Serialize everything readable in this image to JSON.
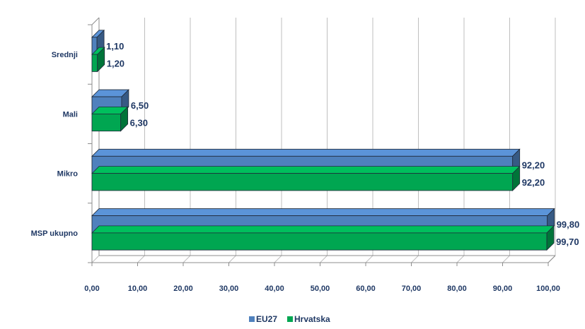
{
  "chart_data": {
    "type": "bar",
    "orientation": "horizontal",
    "three_d": true,
    "categories": [
      "Srednji",
      "Mali",
      "Mikro",
      "MSP ukupno"
    ],
    "series": [
      {
        "name": "EU27",
        "color": "#4f81bd",
        "values": [
          1.1,
          6.5,
          92.2,
          99.8
        ],
        "labels": [
          "1,10",
          "6,50",
          "92,20",
          "99,80"
        ]
      },
      {
        "name": "Hrvatska",
        "color": "#00a651",
        "values": [
          1.2,
          6.3,
          92.2,
          99.7
        ],
        "labels": [
          "1,20",
          "6,30",
          "92,20",
          "99,70"
        ]
      }
    ],
    "xlim": [
      0,
      100
    ],
    "xticks": [
      "0,00",
      "10,00",
      "20,00",
      "30,00",
      "40,00",
      "50,00",
      "60,00",
      "70,00",
      "80,00",
      "90,00",
      "100,00"
    ],
    "grid": true,
    "legend": "bottom",
    "title": "",
    "xlabel": "",
    "ylabel": ""
  }
}
